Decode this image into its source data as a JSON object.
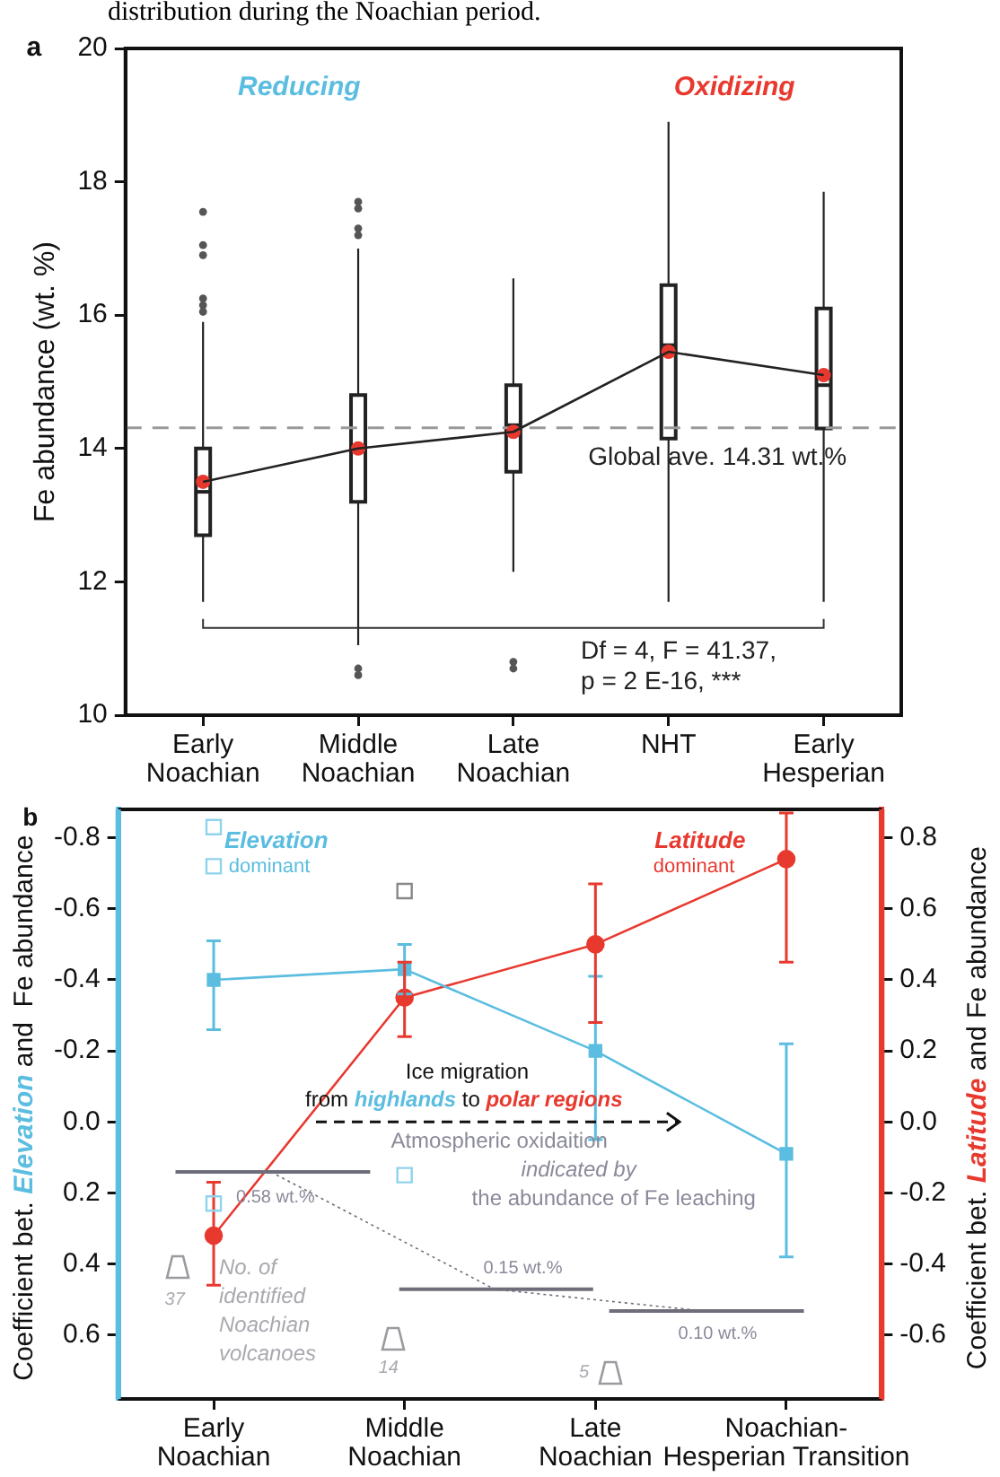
{
  "chart_data": [
    {
      "type": "box",
      "title": "distribution during the Noachian period.",
      "ylabel": "Fe abundance (wt. %)",
      "categories": [
        "Early\nNoachian",
        "Middle\nNoachian",
        "Late\nNoachian",
        "NHT",
        "Early\nHesperian"
      ],
      "series": [
        {
          "type": "box",
          "color": "#222222",
          "boxes": [
            {
              "low": 11.7,
              "q1": 12.7,
              "median": 13.35,
              "q3": 14.0,
              "high": 15.9,
              "outliers": [
                17.55,
                17.05,
                16.9,
                16.25,
                16.15,
                16.05
              ]
            },
            {
              "low": 11.05,
              "q1": 13.2,
              "median": 14.0,
              "q3": 14.8,
              "high": 17.0,
              "outliers": [
                17.7,
                17.6,
                17.3,
                17.2,
                10.7,
                10.6
              ]
            },
            {
              "low": 12.15,
              "q1": 13.65,
              "median": 14.35,
              "q3": 14.95,
              "high": 16.55,
              "outliers": [
                10.8,
                10.7
              ]
            },
            {
              "low": 11.7,
              "q1": 14.15,
              "median": 15.55,
              "q3": 16.45,
              "high": 18.9
            },
            {
              "low": 11.7,
              "q1": 14.3,
              "median": 14.95,
              "q3": 16.1,
              "high": 17.85
            }
          ]
        },
        {
          "type": "line",
          "color": "#222222",
          "marker": "none",
          "values": [
            13.5,
            14.0,
            14.25,
            15.45,
            15.1
          ]
        },
        {
          "type": "scatter",
          "color": "#e8392f",
          "marker": "circle",
          "values": [
            13.5,
            14.0,
            14.25,
            15.45,
            15.1
          ]
        }
      ],
      "ylim": [
        10,
        20
      ],
      "yticks": [
        10,
        12,
        14,
        16,
        18,
        20
      ],
      "grid": false,
      "legend": false,
      "ref_lines": [
        {
          "axis": "y",
          "value": 14.31,
          "label": "Global ave. 14.31 wt.%",
          "color": "#999999",
          "line_style": "dashed"
        }
      ],
      "annotations": [
        "a",
        "Reducing",
        "Oxidizing",
        "Df = 4, F = 41.37,\np = 2 E-16, ***"
      ]
    },
    {
      "type": "line",
      "ylabel": "Coefficient bet. Elevation and  Fe abundance",
      "y2label": "Coefficient bet. Latitude and Fe abundance",
      "categories": [
        "Early\nNoachian",
        "Middle\nNoachian",
        "Late\nNoachian",
        "Noachian-\nHesperian Transition"
      ],
      "series": [
        {
          "type": "line",
          "color": "#5bbde0",
          "marker": "square",
          "axis": "y",
          "values": [
            -0.4,
            -0.43,
            -0.2,
            0.09
          ],
          "errors": [
            [
              -0.51,
              -0.26
            ],
            [
              -0.5,
              -0.36
            ],
            [
              -0.41,
              0.05
            ],
            [
              -0.22,
              0.38
            ]
          ]
        },
        {
          "type": "line",
          "color": "#e8392f",
          "marker": "circle",
          "axis": "y2",
          "values": [
            -0.32,
            0.35,
            0.5,
            0.74
          ],
          "errors": [
            [
              -0.46,
              -0.17
            ],
            [
              0.24,
              0.45
            ],
            [
              0.28,
              0.67
            ],
            [
              0.45,
              0.87
            ]
          ]
        },
        {
          "type": "scatter",
          "color": "#8fd3ec",
          "marker": "square",
          "axis": "y",
          "x": [
            "Early\nNoachian",
            "Early\nNoachian",
            "Early\nNoachian",
            "Middle\nNoachian"
          ],
          "values": [
            -0.83,
            -0.72,
            0.23,
            0.15
          ]
        },
        {
          "type": "scatter",
          "color": "#888888",
          "marker": "square",
          "axis": "y",
          "x": [
            "Middle\nNoachian"
          ],
          "values": [
            -0.65
          ]
        }
      ],
      "ylim": [
        0.78,
        -0.88
      ],
      "yticks": [
        -0.8,
        -0.6,
        -0.4,
        -0.2,
        {
          "value": 0,
          "label": "0.0"
        },
        0.2,
        0.4,
        0.6
      ],
      "y2lim": [
        -0.78,
        0.88
      ],
      "y2ticks": [
        0.8,
        0.6,
        0.4,
        0.2,
        {
          "value": 0,
          "label": "0.0"
        },
        -0.2,
        -0.4,
        -0.6
      ],
      "grid": false,
      "legend": false,
      "annotations": [
        "b",
        "Elevation",
        "dominant",
        "Latitude",
        "dominant",
        "Ice migration",
        "from",
        "highlands",
        "to",
        "polar regions",
        "Atmospheric oxidaition",
        "indicated by",
        "the abundance of Fe leaching",
        "0.58 wt.%",
        "0.15 wt.%",
        "0.10 wt.%",
        "No. of\nidentified\nNoachian\nvolcanoes",
        "37",
        "14",
        "5"
      ]
    }
  ]
}
